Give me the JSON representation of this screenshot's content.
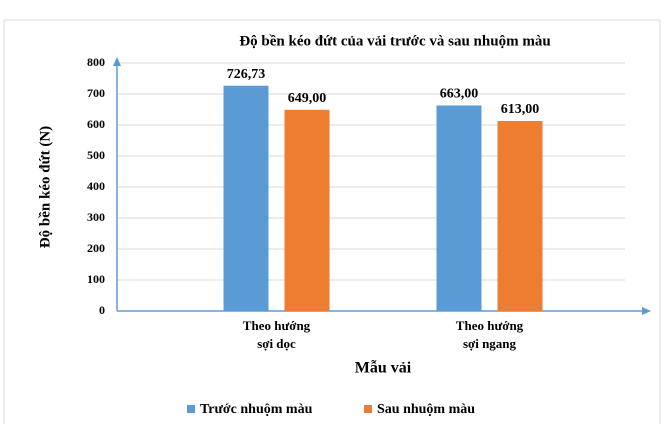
{
  "chart_data": {
    "type": "bar",
    "title": "Độ bền kéo đứt của vải trước và sau nhuộm màu",
    "y_label": "Độ bền kéo đứt (N)",
    "x_label": "Mẫu vải",
    "categories": [
      "Theo hướng sợi dọc",
      "Theo hướng sợi ngang"
    ],
    "series": [
      {
        "name": "Trước nhuộm màu",
        "color": "#5b9bd5",
        "values": [
          726.73,
          663
        ],
        "value_labels": [
          "726,73",
          "663,00"
        ]
      },
      {
        "name": "Sau nhuộm màu",
        "color": "#ed7d31",
        "values": [
          649,
          613
        ],
        "value_labels": [
          "649,00",
          "613,00"
        ]
      }
    ],
    "ylim": [
      0,
      800
    ],
    "yticks": [
      0,
      100,
      200,
      300,
      400,
      500,
      600,
      700,
      800
    ],
    "grid": true,
    "legend": "bottom"
  }
}
